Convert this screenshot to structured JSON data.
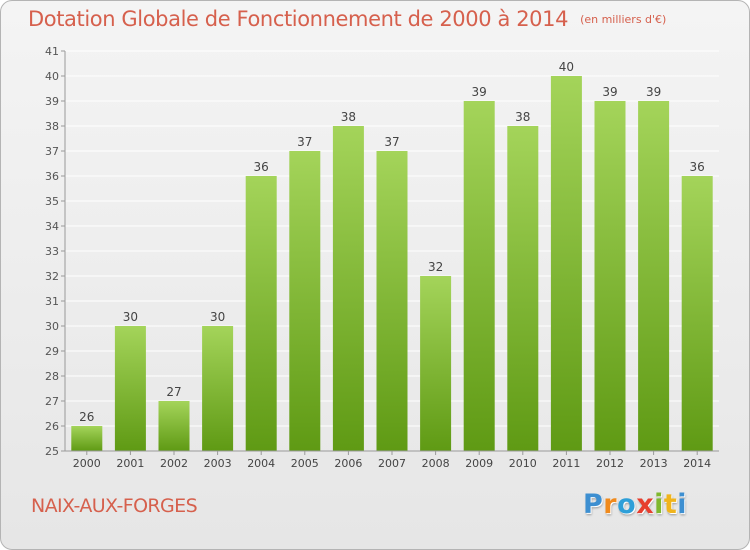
{
  "title": "Dotation Globale de Fonctionnement de 2000 à 2014",
  "subtitle": "(en milliers d'€)",
  "commune": "NAIX-AUX-FORGES",
  "brand_letters": [
    "P",
    "r",
    "o",
    "x",
    "i",
    "t",
    "i"
  ],
  "colors": {
    "title": "#d6604d",
    "bar_top": "#a4d45a",
    "bar_bottom": "#5f9a14",
    "grid": "#ffffff",
    "axis": "#999999"
  },
  "chart_data": {
    "type": "bar",
    "categories": [
      "2000",
      "2001",
      "2002",
      "2003",
      "2004",
      "2005",
      "2006",
      "2007",
      "2008",
      "2009",
      "2010",
      "2011",
      "2012",
      "2013",
      "2014"
    ],
    "values": [
      26,
      30,
      27,
      30,
      36,
      37,
      38,
      37,
      32,
      39,
      38,
      40,
      39,
      39,
      36
    ],
    "ylim": [
      25,
      41
    ],
    "yticks": [
      25,
      26,
      27,
      28,
      29,
      30,
      31,
      32,
      33,
      34,
      35,
      36,
      37,
      38,
      39,
      40,
      41
    ],
    "grid": true,
    "data_labels": true,
    "xlabel": "",
    "ylabel": ""
  }
}
